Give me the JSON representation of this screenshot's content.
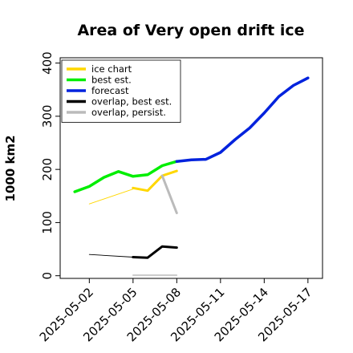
{
  "chart_data": {
    "type": "line",
    "title": "Area of Very open drift ice",
    "ylabel": "1000 km2",
    "xlabel": "",
    "ylim": [
      -5,
      410
    ],
    "yticks": [
      0,
      100,
      200,
      300,
      400
    ],
    "xlim": [
      "2025-04-30",
      "2025-05-18"
    ],
    "xticks": [
      {
        "label": "2025-05-02",
        "date": "2025-05-02",
        "color": "#000000"
      },
      {
        "label": "2025-05-05",
        "date": "2025-05-05",
        "color": "#000000"
      },
      {
        "label": "2025-05-08",
        "date": "2025-05-08",
        "color": "#228B22"
      },
      {
        "label": "2025-05-11",
        "date": "2025-05-11",
        "color": "#000000"
      },
      {
        "label": "2025-05-14",
        "date": "2025-05-14",
        "color": "#000000"
      },
      {
        "label": "2025-05-17",
        "date": "2025-05-17",
        "color": "#000000"
      }
    ],
    "legend_position": "top-left",
    "series": [
      {
        "name": "ice chart",
        "color": "#FFD700",
        "segments": [
          {
            "width": 0.9,
            "points": [
              [
                "2025-05-02",
                135
              ],
              [
                "2025-05-05",
                163
              ]
            ]
          },
          {
            "width": 3,
            "points": [
              [
                "2025-05-05",
                165
              ],
              [
                "2025-05-06",
                160
              ],
              [
                "2025-05-07",
                188
              ],
              [
                "2025-05-08",
                197
              ]
            ]
          }
        ]
      },
      {
        "name": "best est.",
        "color": "#00EE00",
        "segments": [
          {
            "width": 3.5,
            "points": [
              [
                "2025-05-01",
                158
              ],
              [
                "2025-05-02",
                168
              ],
              [
                "2025-05-03",
                185
              ],
              [
                "2025-05-04",
                196
              ],
              [
                "2025-05-05",
                187
              ],
              [
                "2025-05-06",
                190
              ],
              [
                "2025-05-07",
                207
              ],
              [
                "2025-05-08",
                215
              ]
            ]
          }
        ]
      },
      {
        "name": "forecast",
        "color": "#0022DD",
        "segments": [
          {
            "width": 3.5,
            "points": [
              [
                "2025-05-08",
                215
              ],
              [
                "2025-05-09",
                218
              ],
              [
                "2025-05-10",
                219
              ],
              [
                "2025-05-11",
                232
              ],
              [
                "2025-05-12",
                256
              ],
              [
                "2025-05-13",
                278
              ],
              [
                "2025-05-14",
                306
              ],
              [
                "2025-05-15",
                337
              ],
              [
                "2025-05-16",
                358
              ],
              [
                "2025-05-17",
                372
              ]
            ]
          }
        ]
      },
      {
        "name": "overlap, best est.",
        "color": "#000000",
        "segments": [
          {
            "width": 0.9,
            "points": [
              [
                "2025-05-02",
                40
              ],
              [
                "2025-05-05",
                35
              ]
            ]
          },
          {
            "width": 3,
            "points": [
              [
                "2025-05-05",
                35
              ],
              [
                "2025-05-06",
                34
              ],
              [
                "2025-05-07",
                55
              ],
              [
                "2025-05-08",
                53
              ]
            ]
          }
        ]
      },
      {
        "name": "overlap, persist.",
        "color": "#BBBBBB",
        "segments": [
          {
            "width": 1.5,
            "points": [
              [
                "2025-05-05",
                1
              ],
              [
                "2025-05-08",
                1
              ]
            ]
          },
          {
            "width": 3,
            "points": [
              [
                "2025-05-07",
                188
              ],
              [
                "2025-05-08",
                118
              ]
            ]
          }
        ]
      }
    ]
  }
}
